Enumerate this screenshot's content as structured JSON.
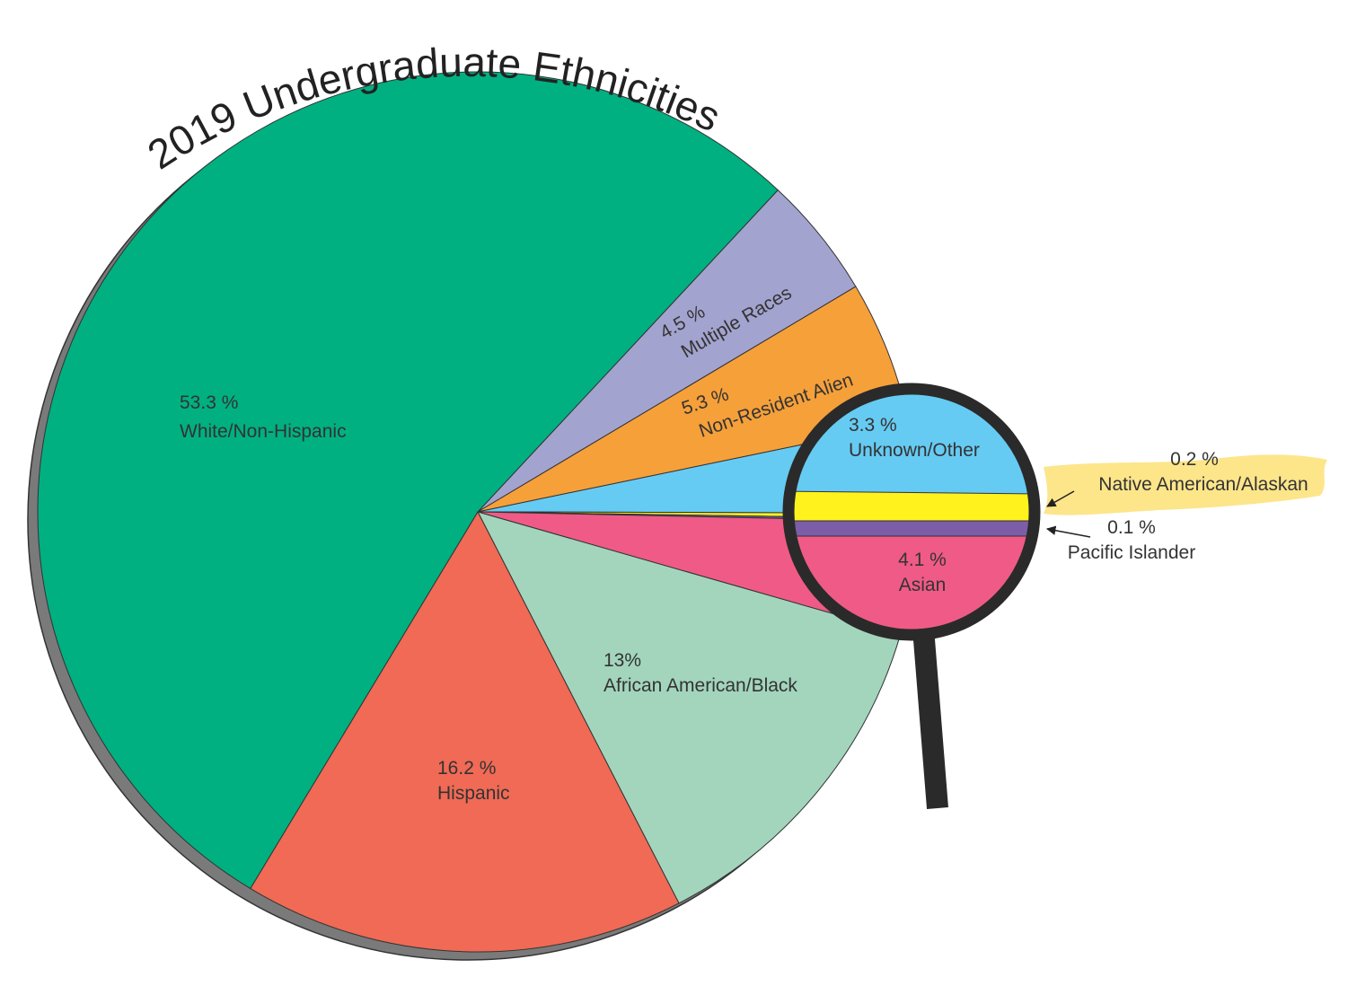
{
  "chart_data": {
    "type": "pie",
    "title": "2019 Undergraduate Ethnicities",
    "categories": [
      "Multiple Races",
      "Non-Resident Alien",
      "Unknown/Other",
      "Native American/Alaskan",
      "Pacific Islander",
      "Asian",
      "African American/Black",
      "Hispanic",
      "White/Non-Hispanic"
    ],
    "values": [
      4.5,
      5.3,
      3.3,
      0.2,
      0.1,
      4.1,
      13,
      16.2,
      53.3
    ],
    "value_labels": [
      "4.5 %",
      "5.3 %",
      "3.3 %",
      "0.2 %",
      "0.1 %",
      "4.1 %",
      "13%",
      "16.2 %",
      "53.3 %"
    ],
    "colors": [
      "#a3a3cf",
      "#f6a03a",
      "#66cbf3",
      "#fff21d",
      "#7b5ea7",
      "#ef5b86",
      "#a3d5bd",
      "#f06a55",
      "#00b081"
    ]
  }
}
